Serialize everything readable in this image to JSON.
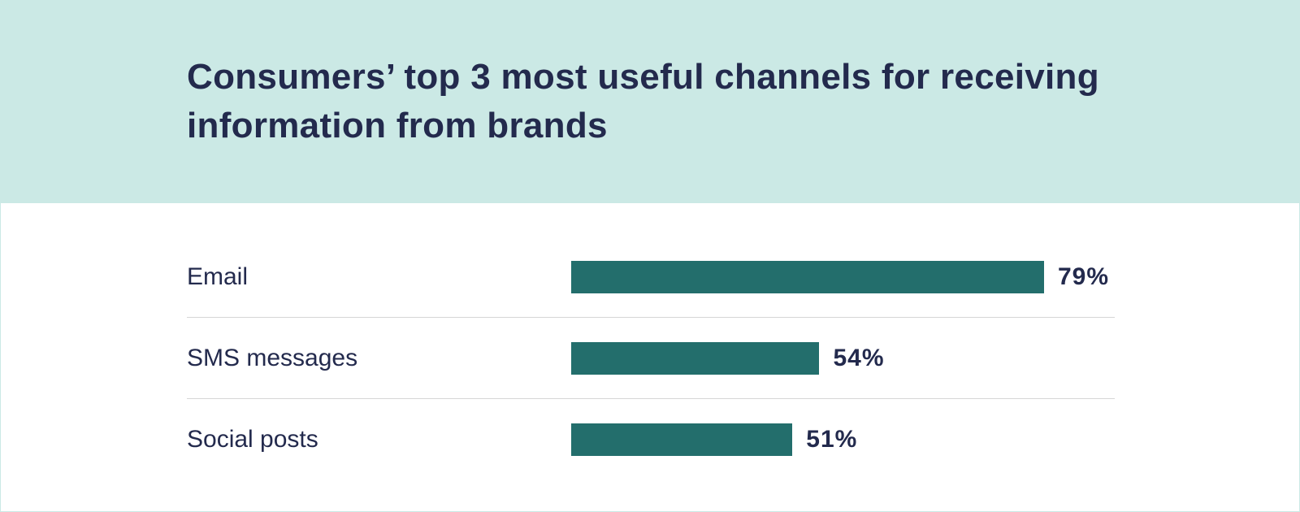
{
  "chart_data": {
    "type": "bar",
    "orientation": "horizontal",
    "title": "Consumers’ top 3 most useful channels for receiving information from brands",
    "categories": [
      "Email",
      "SMS messages",
      "Social posts"
    ],
    "values": [
      79,
      54,
      51
    ],
    "value_labels": [
      "79%",
      "54%",
      "51%"
    ],
    "unit": "%",
    "xlim": [
      30,
      79
    ],
    "grid": false,
    "legend": "none"
  },
  "colors": {
    "header_background": "#cbe9e5",
    "bar": "#236e6c",
    "text": "#232a4d",
    "divider": "#d6d6d6"
  }
}
